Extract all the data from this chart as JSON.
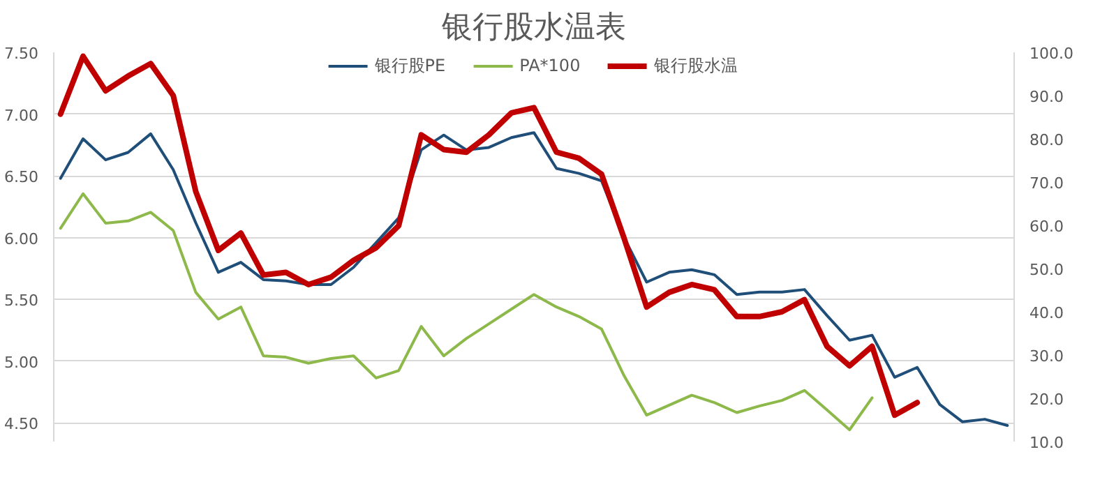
{
  "chart_data": {
    "type": "line",
    "title": "银行股水温表",
    "categories": [
      null,
      null,
      null,
      null,
      null,
      null,
      null,
      null,
      null,
      null,
      null,
      null,
      null,
      null,
      null,
      null,
      null,
      null,
      null,
      null,
      null,
      null,
      null,
      null,
      null,
      null,
      null,
      null,
      null,
      null,
      null,
      null,
      null,
      null,
      null,
      null,
      null,
      null,
      null,
      null,
      null,
      null,
      null
    ],
    "series": [
      {
        "name": "银行股PE",
        "color": "#1f4e79",
        "values": [
          6.48,
          6.8,
          6.63,
          6.69,
          6.84,
          6.55,
          6.12,
          5.72,
          5.8,
          5.66,
          5.65,
          5.62,
          5.62,
          5.76,
          5.96,
          6.16,
          6.71,
          6.83,
          6.71,
          6.73,
          6.81,
          6.85,
          6.56,
          6.52,
          6.46,
          6.0,
          5.64,
          5.72,
          5.74,
          5.7,
          5.54,
          5.56,
          5.56,
          5.58,
          5.37,
          5.17,
          5.21,
          4.87,
          4.95,
          4.65,
          4.51,
          4.53,
          4.48
        ]
      },
      {
        "name": "PA*100",
        "color": "#8db84a",
        "axis": "y2",
        "values": [
          59.3,
          67.3,
          60.5,
          61.0,
          63.0,
          58.8,
          44.5,
          38.3,
          41.1,
          29.8,
          29.5,
          28.1,
          29.2,
          29.8,
          24.7,
          26.4,
          36.6,
          29.8,
          33.8,
          37.2,
          40.6,
          44.0,
          41.1,
          38.9,
          36.0,
          25.2,
          16.1,
          18.4,
          20.7,
          19.0,
          16.7,
          18.2,
          19.5,
          21.8,
          17.3,
          12.7,
          20.1,
          null,
          null,
          null,
          null,
          null,
          null
        ]
      },
      {
        "name": "银行股水温",
        "color": "#c00000",
        "axis": "y2",
        "values": [
          85.7,
          99.1,
          91.1,
          94.5,
          97.4,
          90.0,
          67.8,
          54.2,
          58.2,
          48.5,
          49.1,
          46.3,
          48.0,
          51.9,
          54.8,
          59.9,
          80.9,
          77.5,
          76.9,
          80.9,
          86.0,
          87.2,
          76.9,
          75.5,
          71.8,
          57.0,
          41.1,
          44.5,
          46.3,
          45.1,
          38.9,
          38.9,
          40.0,
          42.8,
          32.0,
          27.5,
          32.0,
          16.1,
          19.0,
          null,
          null,
          null,
          null
        ]
      }
    ],
    "ylim": [
      4.35,
      7.5
    ],
    "yticks": [
      {
        "value": 4.5,
        "label": "4.50"
      },
      {
        "value": 5.0,
        "label": "5.00"
      },
      {
        "value": 5.5,
        "label": "5.50"
      },
      {
        "value": 6.0,
        "label": "6.00"
      },
      {
        "value": 6.5,
        "label": "6.50"
      },
      {
        "value": 7.0,
        "label": "7.00"
      },
      {
        "value": 7.5,
        "label": "7.50"
      }
    ],
    "y2lim": [
      10,
      100
    ],
    "y2ticks": [
      {
        "value": 10,
        "label": "10.0"
      },
      {
        "value": 20,
        "label": "20.0"
      },
      {
        "value": 30,
        "label": "30.0"
      },
      {
        "value": 40,
        "label": "40.0"
      },
      {
        "value": 50,
        "label": "50.0"
      },
      {
        "value": 60,
        "label": "60.0"
      },
      {
        "value": 70,
        "label": "70.0"
      },
      {
        "value": 80,
        "label": "80.0"
      },
      {
        "value": 90,
        "label": "90.0"
      },
      {
        "value": 100,
        "label": "100.0"
      }
    ],
    "grid": "y",
    "legend": "top",
    "tick_labels": "y",
    "line_style": "solid",
    "marker": "none"
  }
}
